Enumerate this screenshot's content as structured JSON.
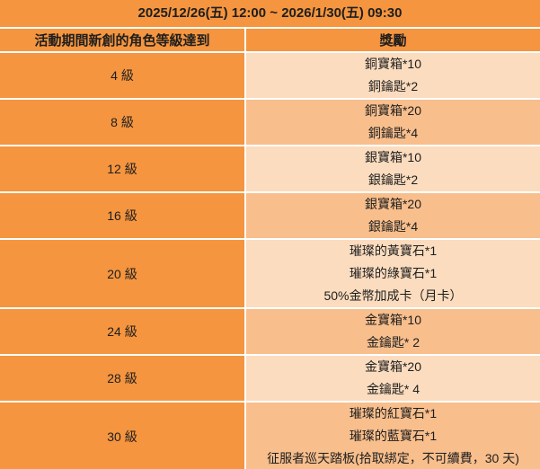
{
  "colors": {
    "orange": "#F5953F",
    "reward_light": "#FBDCBE",
    "reward_dark": "#F8BE8C",
    "gridline": "#FFFFFF",
    "text": "#1E1E1E"
  },
  "header": {
    "date_range": "2025/12/26(五) 12:00 ~ 2026/1/30(五) 09:30"
  },
  "table": {
    "columns": [
      "活動期間新創的角色等級達到",
      "獎勵"
    ],
    "rows": [
      {
        "level": "4 級",
        "rewards": [
          "銅寶箱*10",
          "銅鑰匙*2"
        ]
      },
      {
        "level": "8 級",
        "rewards": [
          "銅寶箱*20",
          "銅鑰匙*4"
        ]
      },
      {
        "level": "12 級",
        "rewards": [
          "銀寶箱*10",
          "銀鑰匙*2"
        ]
      },
      {
        "level": "16 級",
        "rewards": [
          "銀寶箱*20",
          "銀鑰匙*4"
        ]
      },
      {
        "level": "20 級",
        "rewards": [
          "璀璨的黃寶石*1",
          "璀璨的綠寶石*1",
          "50%金幣加成卡（月卡）"
        ]
      },
      {
        "level": "24 級",
        "rewards": [
          "金寶箱*10",
          "金鑰匙* 2"
        ]
      },
      {
        "level": "28 級",
        "rewards": [
          "金寶箱*20",
          "金鑰匙* 4"
        ]
      },
      {
        "level": "30 級",
        "rewards": [
          "璀璨的紅寶石*1",
          "璀璨的藍寶石*1",
          "征服者巡天踏板(拾取綁定，不可續費，30 天)"
        ]
      }
    ]
  }
}
